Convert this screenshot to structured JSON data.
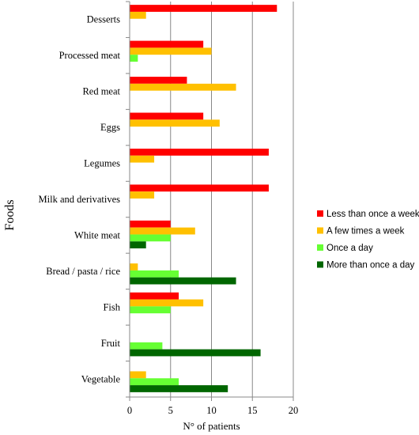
{
  "chart_data": {
    "type": "bar",
    "orientation": "horizontal",
    "categories": [
      "Desserts",
      "Processed meat",
      "Red meat",
      "Eggs",
      "Legumes",
      "Milk and derivatives",
      "White meat",
      "Bread / pasta / rice",
      "Fish",
      "Fruit",
      "Vegetable"
    ],
    "series": [
      {
        "name": "Less than once a week",
        "color": "#ff0000",
        "values": [
          18,
          9,
          7,
          9,
          17,
          17,
          5,
          0,
          6,
          0,
          0
        ]
      },
      {
        "name": "A few times a week",
        "color": "#ffc000",
        "values": [
          2,
          10,
          13,
          11,
          3,
          3,
          8,
          1,
          9,
          0,
          2
        ]
      },
      {
        "name": "Once a day",
        "color": "#66ff33",
        "values": [
          0,
          1,
          0,
          0,
          0,
          0,
          5,
          6,
          5,
          4,
          6
        ]
      },
      {
        "name": "More than once a day",
        "color": "#006600",
        "values": [
          0,
          0,
          0,
          0,
          0,
          0,
          2,
          13,
          0,
          16,
          12
        ]
      }
    ],
    "xlabel": "N° of patients",
    "ylabel": "Foods",
    "xlim": [
      0,
      20
    ],
    "xticks": [
      0,
      5,
      10,
      15,
      20
    ],
    "grid": "vertical",
    "legend_position": "right"
  }
}
